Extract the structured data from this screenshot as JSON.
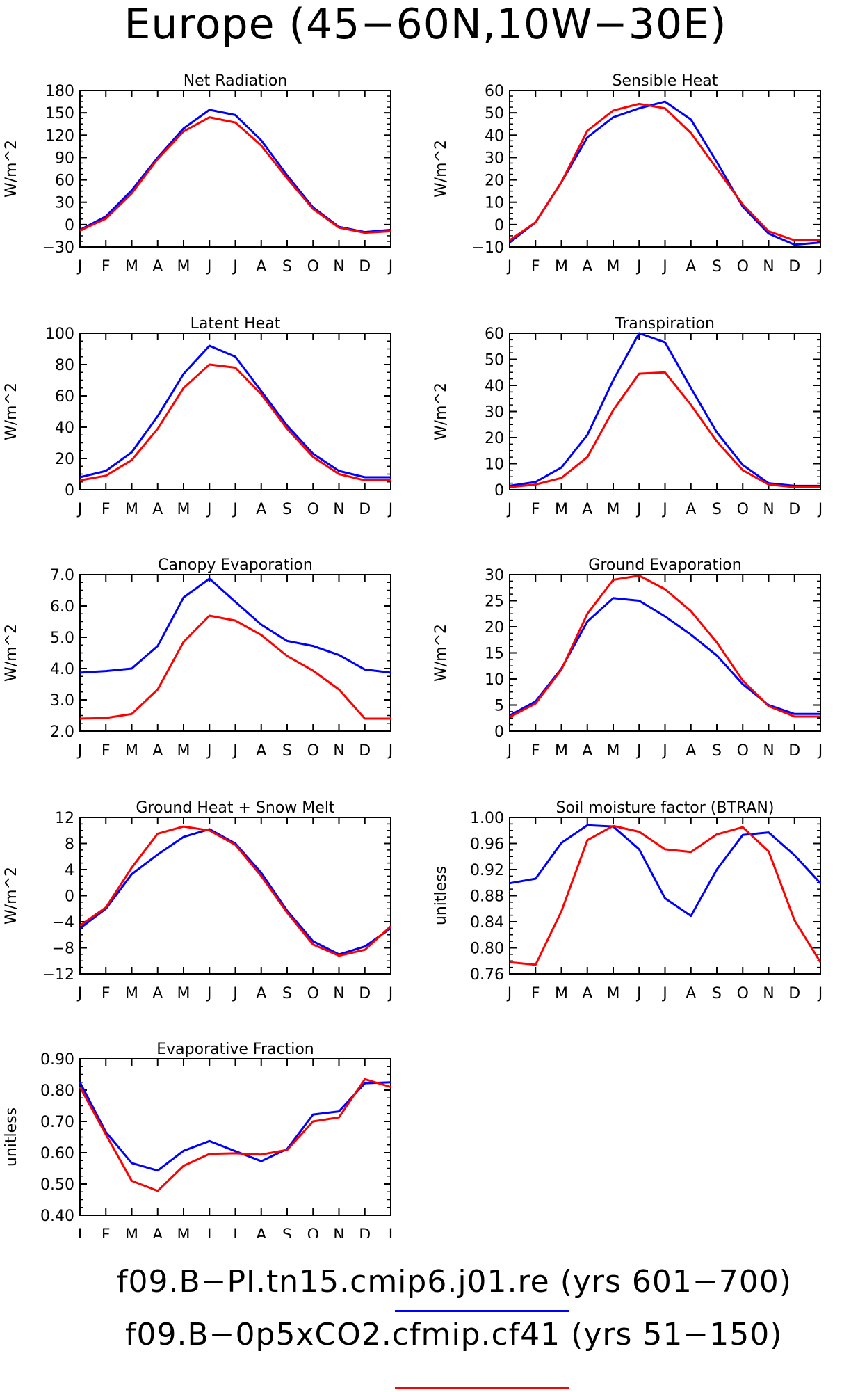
{
  "page_title": "Europe (45-60N,10W-30E)",
  "legend": [
    {
      "label": "f09.B-PI.tn15.cmip6.j01.re (yrs 601-700)",
      "color": "#0000ff"
    },
    {
      "label": "f09.B-0p5xCO2.cfmip.cf41 (yrs 51-150)",
      "color": "#ff0000"
    }
  ],
  "chart_data": [
    {
      "type": "line",
      "title": "Net Radiation",
      "ylabel": "W/m^2",
      "ylim": [
        -30,
        180
      ],
      "yticks": [
        -30,
        0,
        30,
        60,
        90,
        120,
        150,
        180
      ],
      "ytick_labels": [
        "-30",
        "0",
        "30",
        "60",
        "90",
        "120",
        "150",
        "180"
      ],
      "x": [
        "J",
        "F",
        "M",
        "A",
        "M",
        "J",
        "J",
        "A",
        "S",
        "O",
        "N",
        "D",
        "J"
      ],
      "series": [
        {
          "color": "#0000ff",
          "values": [
            -7,
            11,
            46,
            90,
            129,
            154,
            147,
            113,
            66,
            23,
            -3,
            -10,
            -7
          ]
        },
        {
          "color": "#ff0000",
          "values": [
            -8,
            8,
            42,
            88,
            125,
            144,
            137,
            106,
            62,
            21,
            -4,
            -11,
            -9
          ]
        }
      ]
    },
    {
      "type": "line",
      "title": "Sensible Heat",
      "ylabel": "W/m^2",
      "ylim": [
        -10,
        60
      ],
      "yticks": [
        -10,
        0,
        10,
        20,
        30,
        40,
        50,
        60
      ],
      "ytick_labels": [
        "-10",
        "0",
        "10",
        "20",
        "30",
        "40",
        "50",
        "60"
      ],
      "x": [
        "J",
        "F",
        "M",
        "A",
        "M",
        "J",
        "J",
        "A",
        "S",
        "O",
        "N",
        "D",
        "J"
      ],
      "series": [
        {
          "color": "#0000ff",
          "values": [
            -8,
            1,
            19,
            39,
            48,
            52,
            55,
            47,
            28,
            8,
            -4,
            -9,
            -8
          ]
        },
        {
          "color": "#ff0000",
          "values": [
            -7,
            1,
            19,
            42,
            51,
            54,
            52,
            41,
            25,
            9,
            -3,
            -7,
            -7
          ]
        }
      ]
    },
    {
      "type": "line",
      "title": "Latent Heat",
      "ylabel": "W/m^2",
      "ylim": [
        0,
        100
      ],
      "yticks": [
        0,
        20,
        40,
        60,
        80,
        100
      ],
      "ytick_labels": [
        "0",
        "20",
        "40",
        "60",
        "80",
        "100"
      ],
      "x": [
        "J",
        "F",
        "M",
        "A",
        "M",
        "J",
        "J",
        "A",
        "S",
        "O",
        "N",
        "D",
        "J"
      ],
      "series": [
        {
          "color": "#0000ff",
          "values": [
            8,
            12,
            24,
            47,
            74,
            92,
            85,
            63,
            41,
            23,
            12,
            8,
            8
          ]
        },
        {
          "color": "#ff0000",
          "values": [
            6,
            9,
            19,
            39,
            65,
            80,
            78,
            61,
            39,
            21,
            10,
            6,
            6
          ]
        }
      ]
    },
    {
      "type": "line",
      "title": "Transpiration",
      "ylabel": "W/m^2",
      "ylim": [
        0,
        60
      ],
      "yticks": [
        0,
        10,
        20,
        30,
        40,
        50,
        60
      ],
      "ytick_labels": [
        "0",
        "10",
        "20",
        "30",
        "40",
        "50",
        "60"
      ],
      "x": [
        "J",
        "F",
        "M",
        "A",
        "M",
        "J",
        "J",
        "A",
        "S",
        "O",
        "N",
        "D",
        "J"
      ],
      "series": [
        {
          "color": "#0000ff",
          "values": [
            1.5,
            3,
            8.5,
            21,
            42,
            60,
            56.5,
            39,
            22,
            9.5,
            2.5,
            1.5,
            1.5
          ]
        },
        {
          "color": "#ff0000",
          "values": [
            1,
            2,
            4.5,
            12.5,
            30.5,
            44.5,
            45,
            32.5,
            18.5,
            7.5,
            2,
            1,
            1
          ]
        }
      ]
    },
    {
      "type": "line",
      "title": "Canopy Evaporation",
      "ylabel": "W/m^2",
      "ylim": [
        2.0,
        7.0
      ],
      "yticks": [
        2.0,
        3.0,
        4.0,
        5.0,
        6.0,
        7.0
      ],
      "ytick_labels": [
        "2.0",
        "3.0",
        "4.0",
        "5.0",
        "6.0",
        "7.0"
      ],
      "x": [
        "J",
        "F",
        "M",
        "A",
        "M",
        "J",
        "J",
        "A",
        "S",
        "O",
        "N",
        "D",
        "J"
      ],
      "series": [
        {
          "color": "#0000ff",
          "values": [
            3.87,
            3.92,
            4.0,
            4.72,
            6.27,
            6.87,
            6.13,
            5.4,
            4.88,
            4.72,
            4.43,
            3.97,
            3.87
          ]
        },
        {
          "color": "#ff0000",
          "values": [
            2.4,
            2.42,
            2.55,
            3.33,
            4.85,
            5.69,
            5.53,
            5.07,
            4.4,
            3.93,
            3.33,
            2.4,
            2.4
          ]
        }
      ]
    },
    {
      "type": "line",
      "title": "Ground Evaporation",
      "ylabel": "W/m^2",
      "ylim": [
        0,
        30
      ],
      "yticks": [
        0,
        5,
        10,
        15,
        20,
        25,
        30
      ],
      "ytick_labels": [
        "0",
        "5",
        "10",
        "15",
        "20",
        "25",
        "30"
      ],
      "x": [
        "J",
        "F",
        "M",
        "A",
        "M",
        "J",
        "J",
        "A",
        "S",
        "O",
        "N",
        "D",
        "J"
      ],
      "series": [
        {
          "color": "#0000ff",
          "values": [
            3,
            5.7,
            12,
            21,
            25.5,
            25,
            22,
            18.5,
            14.5,
            9,
            5,
            3.3,
            3.3
          ]
        },
        {
          "color": "#ff0000",
          "values": [
            2.7,
            5.3,
            11.8,
            22.5,
            29,
            29.8,
            27.2,
            23,
            17,
            9.7,
            4.8,
            2.8,
            2.8
          ]
        }
      ]
    },
    {
      "type": "line",
      "title": "Ground Heat + Snow Melt",
      "ylabel": "W/m^2",
      "ylim": [
        -12,
        12
      ],
      "yticks": [
        -12,
        -8,
        -4,
        0,
        4,
        8,
        12
      ],
      "ytick_labels": [
        "-12",
        "-8",
        "-4",
        "0",
        "4",
        "8",
        "12"
      ],
      "x": [
        "J",
        "F",
        "M",
        "A",
        "M",
        "J",
        "J",
        "A",
        "S",
        "O",
        "N",
        "D",
        "J"
      ],
      "series": [
        {
          "color": "#0000ff",
          "values": [
            -5,
            -2,
            3.3,
            6.3,
            9,
            10.2,
            8,
            3.5,
            -2.3,
            -7,
            -9,
            -7.8,
            -5
          ]
        },
        {
          "color": "#ff0000",
          "values": [
            -4.6,
            -1.8,
            4.3,
            9.5,
            10.6,
            10,
            7.8,
            3,
            -2.6,
            -7.5,
            -9.2,
            -8.3,
            -4.7
          ]
        }
      ]
    },
    {
      "type": "line",
      "title": "Soil moisture factor (BTRAN)",
      "ylabel": "unitless",
      "ylim": [
        0.76,
        1.0
      ],
      "yticks": [
        0.76,
        0.8,
        0.84,
        0.88,
        0.92,
        0.96,
        1.0
      ],
      "ytick_labels": [
        "0.76",
        "0.80",
        "0.84",
        "0.88",
        "0.92",
        "0.96",
        "1.00"
      ],
      "x": [
        "J",
        "F",
        "M",
        "A",
        "M",
        "J",
        "J",
        "A",
        "S",
        "O",
        "N",
        "D",
        "J"
      ],
      "series": [
        {
          "color": "#0000ff",
          "values": [
            0.899,
            0.906,
            0.961,
            0.988,
            0.986,
            0.951,
            0.876,
            0.849,
            0.92,
            0.973,
            0.977,
            0.942,
            0.899
          ]
        },
        {
          "color": "#ff0000",
          "values": [
            0.778,
            0.774,
            0.856,
            0.965,
            0.987,
            0.978,
            0.951,
            0.947,
            0.974,
            0.985,
            0.948,
            0.842,
            0.778
          ]
        }
      ]
    },
    {
      "type": "line",
      "title": "Evaporative Fraction",
      "ylabel": "unitless",
      "ylim": [
        0.4,
        0.9
      ],
      "yticks": [
        0.4,
        0.5,
        0.6,
        0.7,
        0.8,
        0.9
      ],
      "ytick_labels": [
        "0.40",
        "0.50",
        "0.60",
        "0.70",
        "0.80",
        "0.90"
      ],
      "x": [
        "J",
        "F",
        "M",
        "A",
        "M",
        "J",
        "J",
        "A",
        "S",
        "O",
        "N",
        "D",
        "J"
      ],
      "series": [
        {
          "color": "#0000ff",
          "values": [
            0.825,
            0.666,
            0.567,
            0.543,
            0.606,
            0.637,
            0.605,
            0.573,
            0.612,
            0.722,
            0.732,
            0.822,
            0.825
          ]
        },
        {
          "color": "#ff0000",
          "values": [
            0.81,
            0.658,
            0.51,
            0.478,
            0.558,
            0.596,
            0.598,
            0.594,
            0.609,
            0.7,
            0.713,
            0.835,
            0.81
          ]
        }
      ]
    }
  ]
}
